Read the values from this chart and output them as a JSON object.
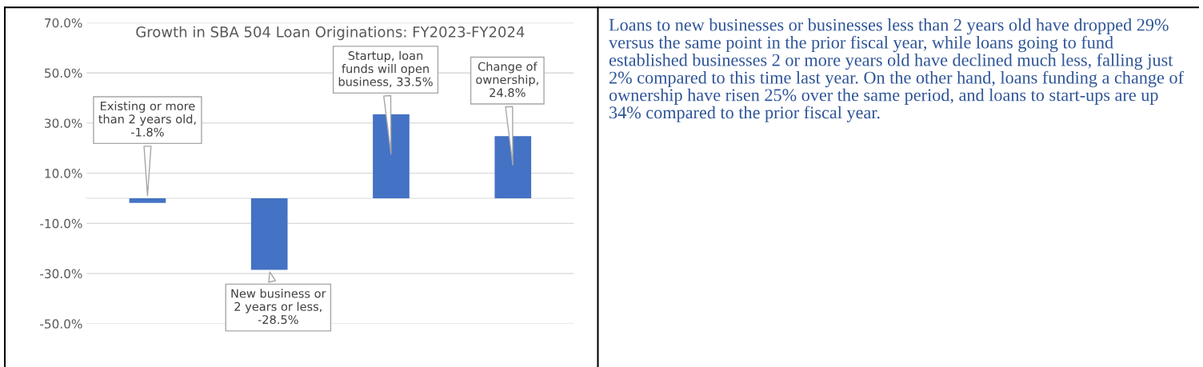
{
  "chart_data": [
    {
      "type": "bar",
      "title": "Growth in SBA 504 Loan Originations: FY2023-FY2024",
      "categories": [
        null,
        null,
        null,
        null
      ],
      "values": [
        -1.8,
        -28.5,
        33.5,
        24.8
      ],
      "color": "#4472c4",
      "value_labels": [
        "Existing or more than 2 years old, -1.8%",
        "New business or 2 years or less, -28.5%",
        "Startup, loan funds will open business, 33.5%",
        "Change of ownership, 24.8%"
      ],
      "ylim": [
        -50,
        70
      ],
      "yticks": [
        {
          "value": -50,
          "label": "-50.0%"
        },
        {
          "value": -30,
          "label": "-30.0%"
        },
        {
          "value": -10,
          "label": "-10.0%"
        },
        {
          "value": 10,
          "label": "10.0%"
        },
        {
          "value": 30,
          "label": "30.0%"
        },
        {
          "value": 50,
          "label": "50.0%"
        },
        {
          "value": 70,
          "label": "70.0%"
        }
      ],
      "grid": "y",
      "legend": false
    },
    {
      "type": "other",
      "annotations": [
        "Loans to new businesses or businesses less than 2 years old have dropped 29% versus the same point in the prior fiscal year, while loans going to fund established businesses 2 or more years old have declined much less, falling just 2% compared to this time last year. On the other hand, loans funding a change of ownership have risen 25% over the same period, and loans to start-ups are up 34% compared to the prior fiscal year."
      ]
    }
  ]
}
